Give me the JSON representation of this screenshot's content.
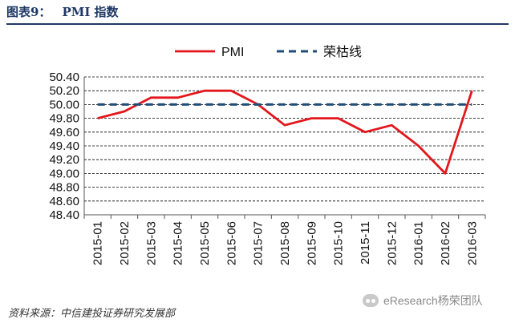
{
  "header": {
    "figure_label": "图表9：",
    "title": "PMI 指数"
  },
  "source": "资料来源：中信建投证券研究发展部",
  "watermark": {
    "icon": "wechat-icon",
    "text": "eResearch杨荣团队"
  },
  "colors": {
    "pmi": "#e3161b",
    "boom_bust": "#1f4e79",
    "grid": "#000000",
    "title": "#1f3864"
  },
  "chart_data": {
    "type": "line",
    "categories": [
      "2015-01",
      "2015-02",
      "2015-03",
      "2015-04",
      "2015-05",
      "2015-06",
      "2015-07",
      "2015-08",
      "2015-09",
      "2015-10",
      "2015-11",
      "2015-12",
      "2016-01",
      "2016-02",
      "2016-03"
    ],
    "series": [
      {
        "name": "PMI",
        "style": "solid",
        "values": [
          49.8,
          49.9,
          50.1,
          50.1,
          50.2,
          50.2,
          50.0,
          49.7,
          49.8,
          49.8,
          49.6,
          49.7,
          49.4,
          49.0,
          50.2
        ]
      },
      {
        "name": "荣枯线",
        "style": "dashed",
        "values": [
          50.0,
          50.0,
          50.0,
          50.0,
          50.0,
          50.0,
          50.0,
          50.0,
          50.0,
          50.0,
          50.0,
          50.0,
          50.0,
          50.0,
          50.0
        ]
      }
    ],
    "yticks": [
      "50.40",
      "50.20",
      "50.00",
      "49.80",
      "49.60",
      "49.40",
      "49.20",
      "49.00",
      "48.80",
      "48.60",
      "48.40"
    ],
    "ylim": [
      48.4,
      50.4
    ],
    "grid": "horizontal dashed",
    "legend": "top"
  }
}
